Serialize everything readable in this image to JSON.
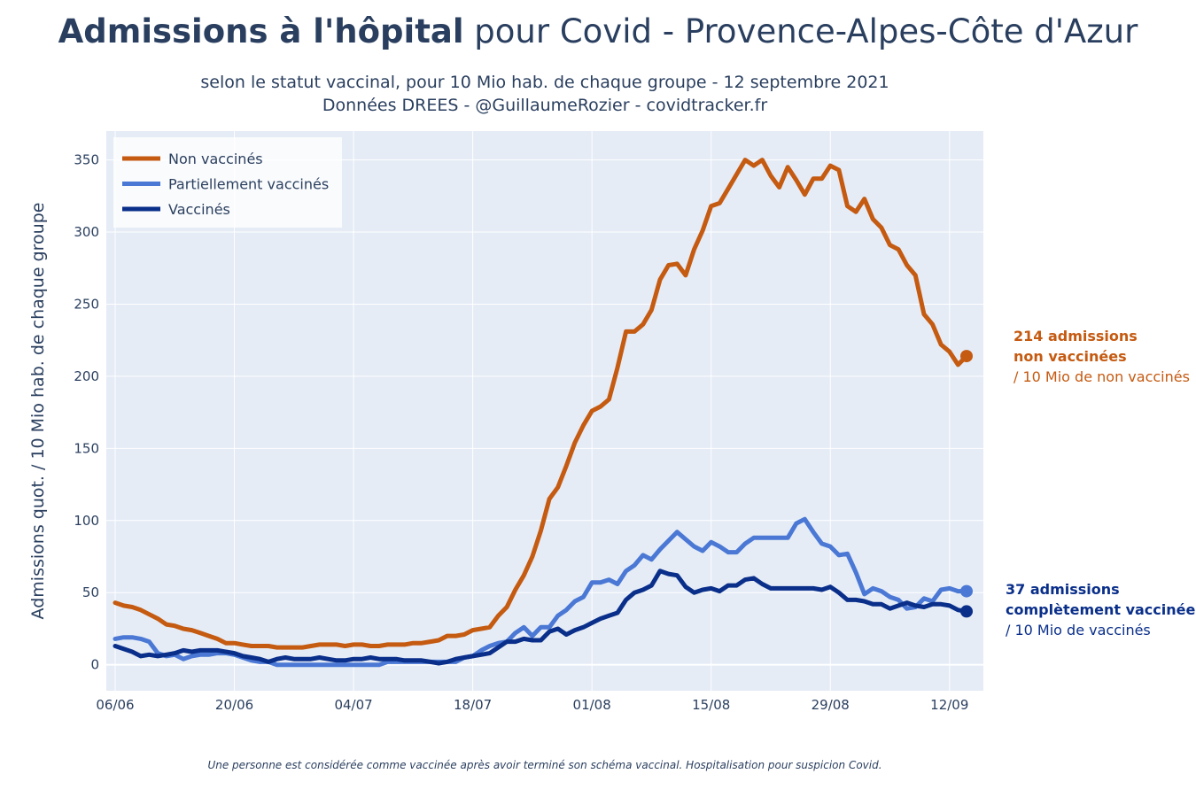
{
  "title_bold": "Admissions à l'hôpital",
  "title_rest": " pour Covid - Provence-Alpes-Côte d'Azur",
  "subtitle_line1": "selon le statut vaccinal, pour 10 Mio hab. de chaque groupe - 12 septembre 2021",
  "subtitle_line2": "Données DREES - @GuillaumeRozier - covidtracker.fr",
  "footnote": "Une personne est considérée comme vaccinée après avoir terminé son schéma vaccinal. Hospitalisation pour suspicion Covid.",
  "annotations": {
    "non_vaccines": {
      "line1": "214 admissions",
      "line2": "non vaccinées",
      "line3": "/ 10 Mio de non vaccinés"
    },
    "vaccines": {
      "line1": "37 admissions",
      "line2": "complètement vaccinée",
      "line3": "/ 10 Mio de vaccinés"
    }
  },
  "colors": {
    "non_vaccines": "#c55a11",
    "partiellement": "#4a78d4",
    "vaccines": "#0a2f8a",
    "plot_bg": "#e5ecf6"
  },
  "chart_data": {
    "type": "line",
    "title": "Admissions à l'hôpital pour Covid - Provence-Alpes-Côte d'Azur",
    "ylabel": "Admissions quot. / 10 Mio hab. de chaque groupe",
    "xlabel": "",
    "x_start": "2021-06-06",
    "x_tick_labels": [
      "06/06",
      "20/06",
      "04/07",
      "18/07",
      "01/08",
      "15/08",
      "29/08",
      "12/09"
    ],
    "x_tick_index": [
      0,
      14,
      28,
      42,
      56,
      70,
      84,
      98
    ],
    "ylim": [
      -18,
      370
    ],
    "y_ticks": [
      0,
      50,
      100,
      150,
      200,
      250,
      300,
      350
    ],
    "grid": true,
    "legend_position": "top-left",
    "series": [
      {
        "name": "Non vaccinés",
        "values": [
          43,
          41,
          40,
          38,
          35,
          32,
          28,
          27,
          25,
          24,
          22,
          20,
          18,
          15,
          15,
          14,
          13,
          13,
          13,
          12,
          12,
          12,
          12,
          13,
          14,
          14,
          14,
          13,
          14,
          14,
          13,
          13,
          14,
          14,
          14,
          15,
          15,
          16,
          17,
          20,
          20,
          21,
          24,
          25,
          26,
          34,
          40,
          52,
          62,
          75,
          93,
          115,
          123,
          138,
          154,
          166,
          176,
          179,
          184,
          206,
          231,
          231,
          236,
          246,
          267,
          277,
          278,
          270,
          288,
          301,
          318,
          320,
          330,
          340,
          350,
          346,
          350,
          339,
          331,
          345,
          336,
          326,
          337,
          337,
          346,
          343,
          318,
          314,
          323,
          309,
          303,
          291,
          288,
          277,
          270,
          243,
          236,
          222,
          217,
          208,
          214
        ]
      },
      {
        "name": "Partiellement vaccinés",
        "values": [
          18,
          19,
          19,
          18,
          16,
          8,
          6,
          7,
          4,
          6,
          7,
          7,
          8,
          8,
          7,
          5,
          3,
          2,
          2,
          0,
          0,
          0,
          0,
          0,
          0,
          0,
          0,
          0,
          0,
          0,
          0,
          0,
          2,
          2,
          2,
          2,
          2,
          2,
          2,
          2,
          2,
          5,
          6,
          10,
          13,
          15,
          16,
          22,
          26,
          20,
          26,
          26,
          34,
          38,
          44,
          47,
          57,
          57,
          59,
          56,
          65,
          69,
          76,
          73,
          80,
          86,
          92,
          87,
          82,
          79,
          85,
          82,
          78,
          78,
          84,
          88,
          88,
          88,
          88,
          88,
          98,
          101,
          92,
          84,
          82,
          76,
          77,
          64,
          49,
          53,
          51,
          47,
          45,
          39,
          40,
          46,
          44,
          52,
          53,
          51,
          51
        ]
      },
      {
        "name": "Vaccinés",
        "values": [
          13,
          11,
          9,
          6,
          7,
          6,
          7,
          8,
          10,
          9,
          10,
          10,
          10,
          9,
          8,
          6,
          5,
          4,
          2,
          4,
          5,
          4,
          4,
          4,
          5,
          4,
          3,
          3,
          4,
          4,
          5,
          4,
          4,
          4,
          3,
          3,
          3,
          2,
          1,
          2,
          4,
          5,
          6,
          7,
          8,
          12,
          16,
          16,
          18,
          17,
          17,
          23,
          25,
          21,
          24,
          26,
          29,
          32,
          34,
          36,
          45,
          50,
          52,
          55,
          65,
          63,
          62,
          54,
          50,
          52,
          53,
          51,
          55,
          55,
          59,
          60,
          56,
          53,
          53,
          53,
          53,
          53,
          53,
          52,
          54,
          50,
          45,
          45,
          44,
          42,
          42,
          39,
          41,
          43,
          41,
          40,
          42,
          42,
          41,
          38,
          37
        ]
      }
    ]
  }
}
